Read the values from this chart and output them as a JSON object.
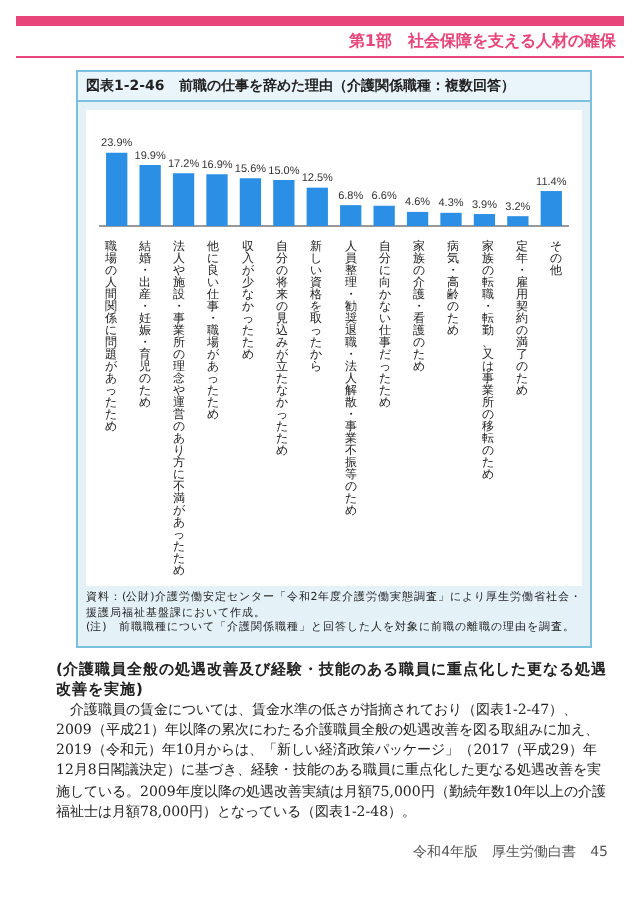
{
  "chart_data": {
    "type": "bar",
    "title": "図表1-2-46　前職の仕事を辞めた理由（介護関係職種：複数回答）",
    "categories": [
      "職場の人間関係に問題があったため",
      "結婚・出産・妊娠・育児のため",
      "法人や施設・事業所の理念や運営のあり方に不満があったため",
      "他に良い仕事・職場があったため",
      "収入が少なかったため",
      "自分の将来の見込みが立たなかったため",
      "新しい資格を取ったから",
      "人員整理・勧奨退職・法人解散・事業不振等のため",
      "自分に向かない仕事だったため",
      "家族の介護・看護のため",
      "病気・高齢のため",
      "家族の転職・転勤、又は事業所の移転のため",
      "定年・雇用契約の満了のため",
      "その他"
    ],
    "values": [
      23.9,
      19.9,
      17.2,
      16.9,
      15.6,
      15.0,
      12.5,
      6.8,
      6.6,
      4.6,
      4.3,
      3.9,
      3.2,
      11.4
    ],
    "value_labels": [
      "23.9%",
      "19.9%",
      "17.2%",
      "16.9%",
      "15.6%",
      "15.0%",
      "12.5%",
      "6.8%",
      "6.6%",
      "4.6%",
      "4.3%",
      "3.9%",
      "3.2%",
      "11.4%"
    ],
    "color": "#2b8fe6",
    "grid": false,
    "legend": false,
    "annotations": [
      "第1部　社会保障を支える人材の確保",
      "資料：(公財)介護労働安定センター「令和2年度介護労働実態調査」により厚生労働省社会・援護局福祉基盤課において作成。",
      "(注)　前職職種について「介護関係職種」と回答した人を対象に前職の離職の理由を調査。",
      "(介護職員全般の処遇改善及び経験・技能のある職員に重点化した更なる処遇改善を実施)",
      "介護職員の賃金については、賃金水準の低さが指摘されており（図表1-2-47）、2009（平成21）年以降の累次にわたる介護職員全般の処遇改善を図る取組みに加え、2019（令和元）年10月からは、「新しい経済政策パッケージ」（2017（平成29）年12月8日閣議決定）に基づき、経験・技能のある職員に重点化した更なる処遇改善を実施している。2009年度以降の処遇改善実績は月額75,000円（勤続年数10年以上の介護福祉士は月額78,000円）となっている（図表1-2-48）。",
      "令和4年版　厚生労働白書　45"
    ]
  }
}
